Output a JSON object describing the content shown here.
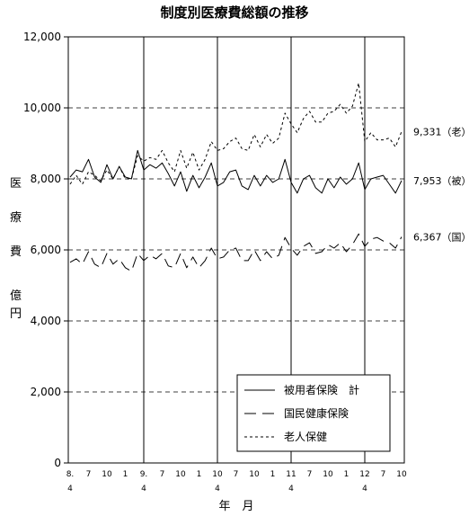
{
  "chart_data": {
    "type": "line",
    "title": "制度別医療費総額の推移",
    "ylabel_chars": [
      "医",
      "療",
      "費",
      "億",
      "円"
    ],
    "xlabel": "年　月",
    "ylim": [
      0,
      12000
    ],
    "yticks": [
      "0",
      "2,000",
      "4,000",
      "6,000",
      "8,000",
      "10,000",
      "12,000"
    ],
    "grid_dashed_at": [
      2000,
      4000,
      6000,
      8000,
      10000
    ],
    "year_dividers_at_month_index": [
      12,
      24,
      36,
      48
    ],
    "x_ticks": [
      {
        "i": 0,
        "top": "8.",
        "bottom": "4"
      },
      {
        "i": 3,
        "top": "7",
        "bottom": ""
      },
      {
        "i": 6,
        "top": "10",
        "bottom": ""
      },
      {
        "i": 9,
        "top": "1",
        "bottom": ""
      },
      {
        "i": 12,
        "top": "9.",
        "bottom": "4"
      },
      {
        "i": 15,
        "top": "7",
        "bottom": ""
      },
      {
        "i": 18,
        "top": "10",
        "bottom": ""
      },
      {
        "i": 21,
        "top": "1",
        "bottom": ""
      },
      {
        "i": 24,
        "top": "10",
        "bottom": "4"
      },
      {
        "i": 27,
        "top": "7",
        "bottom": ""
      },
      {
        "i": 30,
        "top": "10",
        "bottom": ""
      },
      {
        "i": 33,
        "top": "1",
        "bottom": ""
      },
      {
        "i": 36,
        "top": "11",
        "bottom": "4"
      },
      {
        "i": 39,
        "top": "7",
        "bottom": ""
      },
      {
        "i": 42,
        "top": "10",
        "bottom": ""
      },
      {
        "i": 45,
        "top": "1",
        "bottom": ""
      },
      {
        "i": 48,
        "top": "12",
        "bottom": "4"
      },
      {
        "i": 51,
        "top": "7",
        "bottom": ""
      },
      {
        "i": 54,
        "top": "10",
        "bottom": ""
      }
    ],
    "legend": [
      "被用者保険　計",
      "国民健康保険",
      "老人保健"
    ],
    "legend_placement": "bottom-right",
    "series": [
      {
        "name": "被用者保険　計",
        "style": "solid",
        "end_label": "7,953（被）",
        "values": [
          8050,
          8250,
          8200,
          8550,
          8050,
          7900,
          8400,
          8000,
          8350,
          8050,
          8000,
          8800,
          8250,
          8400,
          8300,
          8450,
          8150,
          7800,
          8200,
          7650,
          8100,
          7750,
          8050,
          8450,
          7800,
          7900,
          8200,
          8250,
          7800,
          7700,
          8100,
          7800,
          8100,
          7900,
          8000,
          8550,
          7900,
          7600,
          8000,
          8100,
          7750,
          7600,
          8000,
          7750,
          8050,
          7850,
          8000,
          8450,
          7700,
          8000,
          8050,
          8100,
          7850,
          7600,
          7953
        ]
      },
      {
        "name": "国民健康保険",
        "style": "longdash",
        "end_label": "6,367（国）",
        "values": [
          5650,
          5750,
          5600,
          5950,
          5600,
          5500,
          5900,
          5600,
          5750,
          5500,
          5400,
          5900,
          5700,
          5850,
          5750,
          5900,
          5550,
          5500,
          5900,
          5500,
          5800,
          5500,
          5700,
          6050,
          5750,
          5800,
          6000,
          6050,
          5700,
          5700,
          6000,
          5700,
          5950,
          5750,
          5850,
          6350,
          6050,
          5850,
          6100,
          6200,
          5900,
          5950,
          6150,
          6050,
          6200,
          5950,
          6150,
          6450,
          6100,
          6300,
          6350,
          6250,
          6200,
          6050,
          6367
        ]
      },
      {
        "name": "老人保健",
        "style": "shortdash",
        "end_label": "9,331（老）",
        "values": [
          7850,
          8100,
          7850,
          8200,
          8100,
          7950,
          8250,
          8000,
          8350,
          8000,
          8000,
          8650,
          8500,
          8600,
          8550,
          8800,
          8450,
          8200,
          8800,
          8300,
          8750,
          8250,
          8550,
          9050,
          8800,
          8850,
          9050,
          9150,
          8850,
          8800,
          9250,
          8900,
          9250,
          9000,
          9150,
          9850,
          9550,
          9300,
          9700,
          9900,
          9600,
          9600,
          9850,
          9900,
          10100,
          9850,
          10050,
          10700,
          9050,
          9300,
          9100,
          9100,
          9150,
          8900,
          9331
        ]
      }
    ]
  }
}
